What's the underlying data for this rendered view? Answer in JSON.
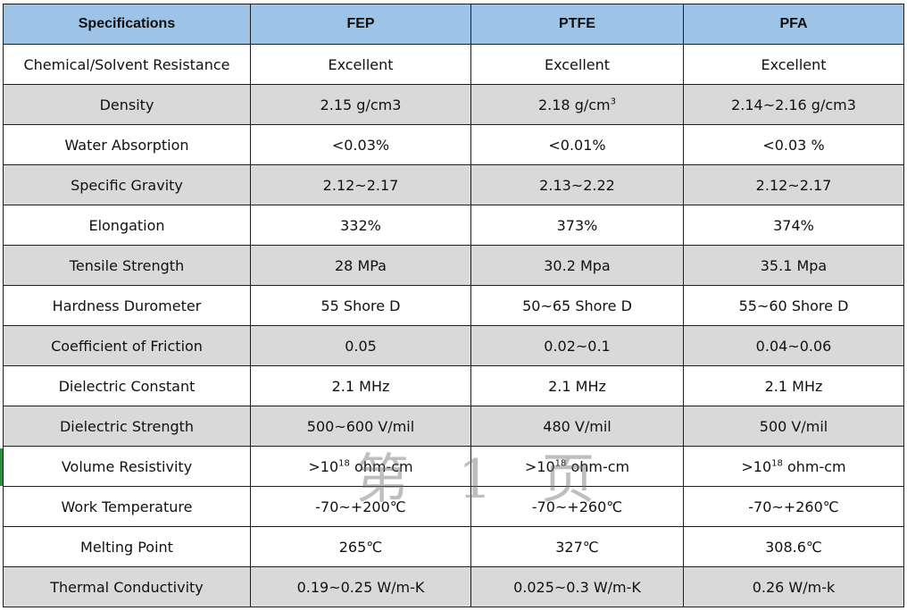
{
  "table": {
    "headers": [
      "Specifications",
      "FEP",
      "PTFE",
      "PFA"
    ],
    "rows": [
      {
        "label": "Chemical/Solvent Resistance",
        "fep": "Excellent",
        "ptfe": "Excellent",
        "pfa": "Excellent"
      },
      {
        "label": "Density",
        "fep": "2.15 g/cm3",
        "ptfe_base": "2.18 g/cm",
        "ptfe_sup": "3",
        "pfa": "2.14~2.16 g/cm3"
      },
      {
        "label": "Water Absorption",
        "fep": "<0.03%",
        "ptfe": "<0.01%",
        "pfa": "<0.03 %"
      },
      {
        "label": "Specific Gravity",
        "fep": "2.12~2.17",
        "ptfe": "2.13~2.22",
        "pfa": "2.12~2.17"
      },
      {
        "label": "Elongation",
        "fep": "332%",
        "ptfe": "373%",
        "pfa": "374%"
      },
      {
        "label": "Tensile Strength",
        "fep": "28 MPa",
        "ptfe": "30.2 Mpa",
        "pfa": "35.1 Mpa"
      },
      {
        "label": "Hardness Durometer",
        "fep": "55 Shore D",
        "ptfe": "50~65 Shore D",
        "pfa": "55~60 Shore D"
      },
      {
        "label": "Coefficient of Friction",
        "fep": "0.05",
        "ptfe": "0.02~0.1",
        "pfa": "0.04~0.06"
      },
      {
        "label": "Dielectric Constant",
        "fep": "2.1 MHz",
        "ptfe": "2.1 MHz",
        "pfa": "2.1 MHz"
      },
      {
        "label": "Dielectric Strength",
        "fep": "500~600 V/mil",
        "ptfe": "480 V/mil",
        "pfa": "500 V/mil"
      },
      {
        "label": "Volume Resistivity",
        "fep_base": ">10",
        "fep_sup": "18",
        "fep_unit": " ohm-cm",
        "ptfe_base": ">10",
        "ptfe_sup": "18",
        "ptfe_unit": " ohm-cm",
        "pfa_base": ">10",
        "pfa_sup": "18",
        "pfa_unit": " ohm-cm"
      },
      {
        "label": "Work Temperature",
        "fep": "-70~+200℃",
        "ptfe": "-70~+260℃",
        "pfa": "-70~+260℃"
      },
      {
        "label": "Melting Point",
        "fep": "265℃",
        "ptfe": "327℃",
        "pfa": "308.6℃"
      },
      {
        "label": "Thermal Conductivity",
        "fep": "0.19~0.25 W/m-K",
        "ptfe": "0.025~0.3 W/m-K",
        "pfa": "0.26 W/m-k"
      }
    ]
  },
  "watermark": "第 1 页"
}
